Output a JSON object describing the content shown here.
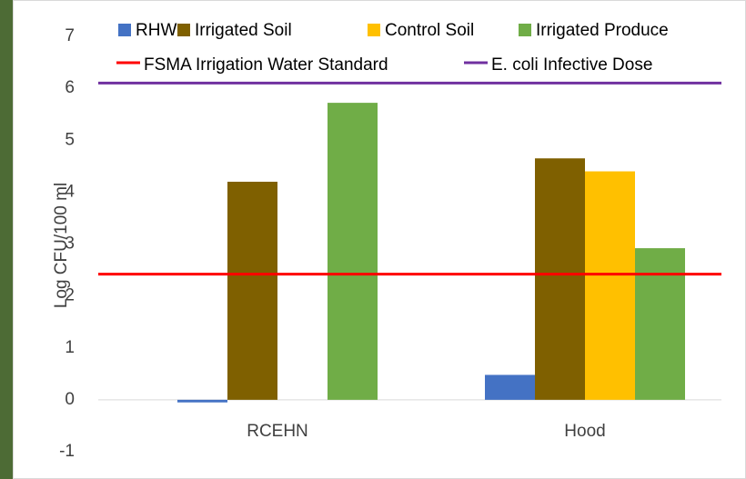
{
  "chart_data": {
    "type": "bar",
    "y_label": "Log CFU/100 ml",
    "categories": [
      "RCEHN",
      "Hood"
    ],
    "series": [
      {
        "name": "RHW",
        "color": "#4472c4",
        "values": [
          -0.05,
          0.48
        ]
      },
      {
        "name": "Irrigated Soil",
        "color": "#7f6000",
        "values": [
          4.2,
          4.65
        ]
      },
      {
        "name": "Control Soil",
        "color": "#ffc000",
        "values": [
          null,
          4.4
        ]
      },
      {
        "name": "Irrigated Produce",
        "color": "#70ad47",
        "values": [
          5.72,
          2.92
        ]
      }
    ],
    "reference_lines": [
      {
        "name": "FSMA Irrigation Water Standard",
        "value": 2.42,
        "color": "#ff0000"
      },
      {
        "name": "E. coli Infective Dose",
        "value": 6.1,
        "color": "#7030a0"
      }
    ],
    "ylim": [
      -1,
      7
    ],
    "yticks": [
      -1,
      0,
      1,
      2,
      3,
      4,
      5,
      6,
      7
    ],
    "grid": false
  }
}
